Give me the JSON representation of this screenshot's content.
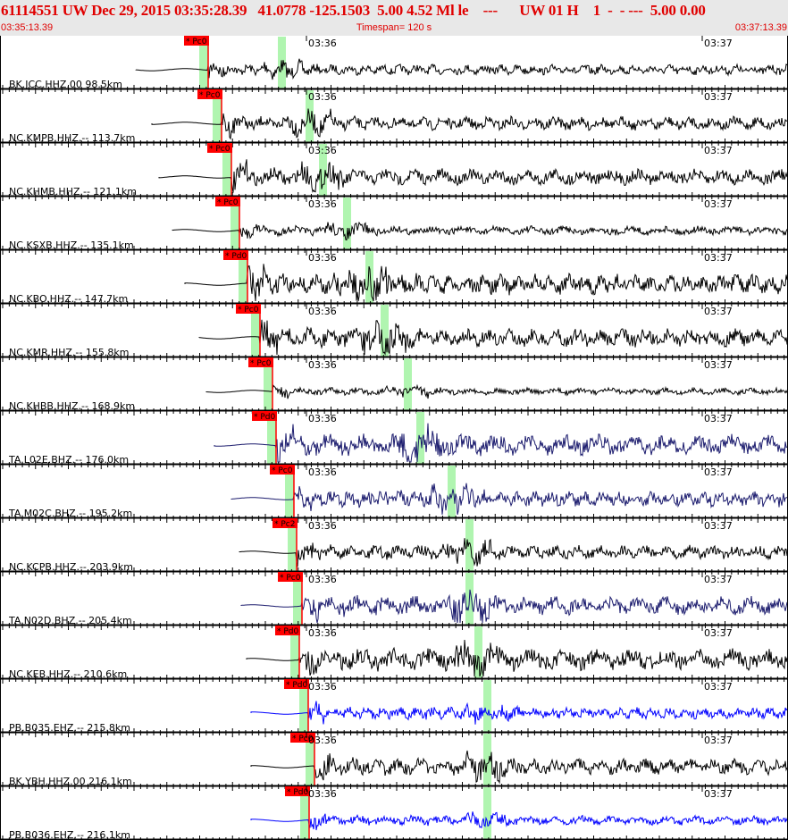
{
  "header": {
    "title": "61114551 UW Dec 29, 2015 03:35:28.39   41.0778 -125.1503  5.00 4.52 Ml le    ---      UW 01 H    1  -  - ---  5.00 0.00",
    "start_time": "03:35:13.39",
    "timespan": "Timespan= 120 s",
    "end_time": "03:37:13.39"
  },
  "colors": {
    "header_text": "#e00000",
    "pick": "#ff0000",
    "phase_window": "#b0f5b0",
    "trace_default": "#000000",
    "trace_TA": "#1c1c6e",
    "trace_PB": "#0000ff"
  },
  "time_marks": [
    "03:36",
    "03:37"
  ],
  "channels": [
    {
      "label": "BK.JCC.HHZ.00 98.5km",
      "pick": "* Pc0",
      "color": "#000000"
    },
    {
      "label": "NC.KMPB.HHZ.-- 113.7km",
      "pick": "* Pc0",
      "color": "#000000"
    },
    {
      "label": "NC.KHMB.HHZ.-- 121.1km",
      "pick": "* Pc0",
      "color": "#000000"
    },
    {
      "label": "NC.KSXB.HHZ.-- 135.1km",
      "pick": "* Pc0",
      "color": "#000000"
    },
    {
      "label": "NC.KBO.HHZ.-- 147.7km",
      "pick": "* Pd0",
      "color": "#000000"
    },
    {
      "label": "NC.KMR.HHZ.-- 155.8km",
      "pick": "* Pc0",
      "color": "#000000"
    },
    {
      "label": "NC.KHBB.HHZ.-- 168.9km",
      "pick": "* Pc0",
      "color": "#000000"
    },
    {
      "label": "TA.L02E.BHZ.-- 176.0km",
      "pick": "* Pd0",
      "color": "#1c1c6e"
    },
    {
      "label": "TA.M02C.BHZ.-- 195.2km",
      "pick": "* Pc0",
      "color": "#1c1c6e"
    },
    {
      "label": "NC.KCPB.HHZ.-- 203.9km",
      "pick": "* Pc2",
      "color": "#000000"
    },
    {
      "label": "TA.N02D.BHZ.-- 205.4km",
      "pick": "* Pc0",
      "color": "#1c1c6e"
    },
    {
      "label": "NC.KEB.HHZ.-- 210.6km",
      "pick": "* Pd0",
      "color": "#000000"
    },
    {
      "label": "PB.B035.EHZ.-- 215.8km",
      "pick": "* Pd0",
      "color": "#0000ff"
    },
    {
      "label": "BK.YBH.HHZ.00 216.1km",
      "pick": "* Pc0",
      "color": "#000000"
    },
    {
      "label": "PB.B036.EHZ.-- 216.1km",
      "pick": "* Pd0",
      "color": "#0000ff"
    }
  ]
}
